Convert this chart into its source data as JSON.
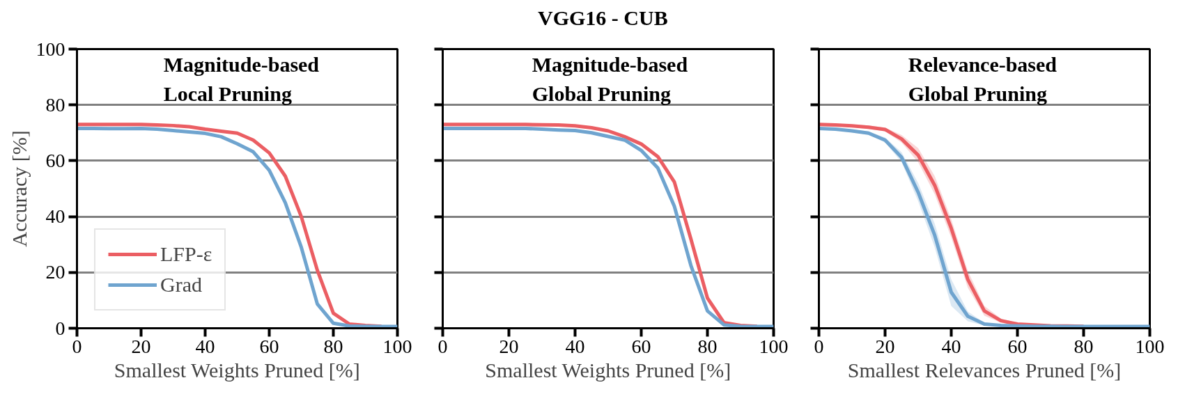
{
  "chart_data": [
    {
      "type": "line",
      "xlabel": "Smallest Weights Pruned [%]",
      "ylabel": "Accuracy [%]",
      "annotations": [
        "Magnitude-based\nLocal Pruning"
      ],
      "xlim": [
        0,
        100
      ],
      "ylim": [
        0,
        100
      ],
      "xticks": [
        0,
        20,
        40,
        60,
        80,
        100
      ],
      "yticks": [
        0,
        20,
        40,
        60,
        80,
        100
      ],
      "grid": "y",
      "legend": "bottom left",
      "x": [
        0,
        5,
        10,
        15,
        20,
        25,
        30,
        35,
        40,
        45,
        50,
        55,
        60,
        65,
        70,
        75,
        80,
        85,
        90,
        95,
        100
      ],
      "series": [
        {
          "name": "LFP-ε",
          "color": "#eb5e63",
          "values": [
            73,
            73,
            73,
            73,
            73,
            72.8,
            72.6,
            72.2,
            71.3,
            70.6,
            69.9,
            67.4,
            62.8,
            54.5,
            40,
            20.8,
            5.4,
            1.5,
            1,
            0.7,
            null
          ]
        },
        {
          "name": "Grad",
          "color": "#6fa4cf",
          "values": [
            71.6,
            71.6,
            71.5,
            71.5,
            71.6,
            71.3,
            70.8,
            70.3,
            69.8,
            68.6,
            66.1,
            63.2,
            56.6,
            45,
            29,
            8.7,
            1.8,
            0.8,
            0.7,
            0.6,
            0.6
          ]
        }
      ]
    },
    {
      "type": "line",
      "title": "VGG16 - CUB",
      "xlabel": "Smallest Weights Pruned [%]",
      "annotations": [
        "Magnitude-based\nGlobal Pruning"
      ],
      "xlim": [
        0,
        100
      ],
      "ylim": [
        0,
        100
      ],
      "xticks": [
        0,
        20,
        40,
        60,
        80,
        100
      ],
      "yticks": [
        0,
        20,
        40,
        60,
        80,
        100
      ],
      "grid": "y",
      "tick_labels": "x",
      "x": [
        0,
        5,
        10,
        15,
        20,
        25,
        30,
        35,
        40,
        45,
        50,
        55,
        60,
        65,
        70,
        75,
        80,
        85,
        90,
        95,
        100
      ],
      "series": [
        {
          "color": "#eb5e63",
          "values": [
            73,
            73,
            73,
            73,
            73,
            73,
            72.9,
            72.8,
            72.5,
            71.8,
            70.7,
            68.6,
            66,
            61.5,
            52.4,
            32,
            10.8,
            2,
            1,
            0.7,
            null
          ]
        },
        {
          "color": "#6fa4cf",
          "values": [
            71.6,
            71.6,
            71.6,
            71.6,
            71.6,
            71.6,
            71.3,
            71,
            70.8,
            70,
            68.7,
            67.4,
            63.7,
            57.4,
            43.7,
            22.5,
            6.2,
            1.2,
            0.7,
            0.6,
            0.6
          ]
        }
      ]
    },
    {
      "type": "line",
      "xlabel": "Smallest Relevances Pruned [%]",
      "annotations": [
        "Relevance-based\nGlobal Pruning"
      ],
      "xlim": [
        0,
        100
      ],
      "ylim": [
        0,
        100
      ],
      "xticks": [
        0,
        20,
        40,
        60,
        80,
        100
      ],
      "yticks": [
        0,
        20,
        40,
        60,
        80,
        100
      ],
      "grid": "y",
      "tick_labels": "x",
      "x": [
        0,
        5,
        10,
        15,
        20,
        25,
        30,
        35,
        40,
        45,
        50,
        55,
        60,
        65,
        70,
        75,
        80,
        85,
        90,
        95,
        100
      ],
      "series": [
        {
          "color": "#eb5e63",
          "values": [
            73,
            72.8,
            72.5,
            72,
            71.2,
            67.8,
            62,
            51.2,
            35.8,
            17.5,
            6.2,
            2.7,
            1.5,
            1.2,
            0.9,
            0.8,
            0.7,
            null,
            null,
            null,
            null
          ],
          "lower": [
            72.5,
            72.3,
            72,
            71.4,
            70.5,
            66.5,
            59.5,
            48,
            32.5,
            14.5,
            4.5,
            2,
            1.2,
            1,
            0.8,
            0.7,
            0.6,
            null,
            null,
            null,
            null
          ],
          "upper": [
            73.5,
            73.3,
            73,
            72.6,
            71.9,
            69.2,
            64.5,
            54.5,
            39,
            20.5,
            8,
            3.5,
            1.8,
            1.4,
            1,
            0.9,
            0.8,
            null,
            null,
            null,
            null
          ]
        },
        {
          "color": "#6fa4cf",
          "values": [
            71.6,
            71.3,
            70.7,
            69.9,
            67.4,
            61.2,
            48.7,
            33.3,
            12.9,
            4.3,
            1.5,
            1,
            0.8,
            0.7,
            0.7,
            0.6,
            0.6,
            0.6,
            0.6,
            0.6,
            0.6
          ],
          "lower": [
            71.1,
            70.8,
            70.2,
            69.3,
            66.5,
            59.5,
            45.5,
            29,
            8,
            2.5,
            1,
            0.8,
            0.7,
            0.6,
            0.6,
            0.5,
            0.5,
            0.5,
            0.5,
            0.5,
            0.5
          ],
          "upper": [
            72.1,
            71.8,
            71.2,
            70.5,
            68.3,
            63,
            52,
            37.5,
            17.5,
            6,
            2,
            1.3,
            1,
            0.8,
            0.8,
            0.7,
            0.7,
            0.7,
            0.7,
            0.7,
            0.7
          ]
        }
      ]
    }
  ]
}
